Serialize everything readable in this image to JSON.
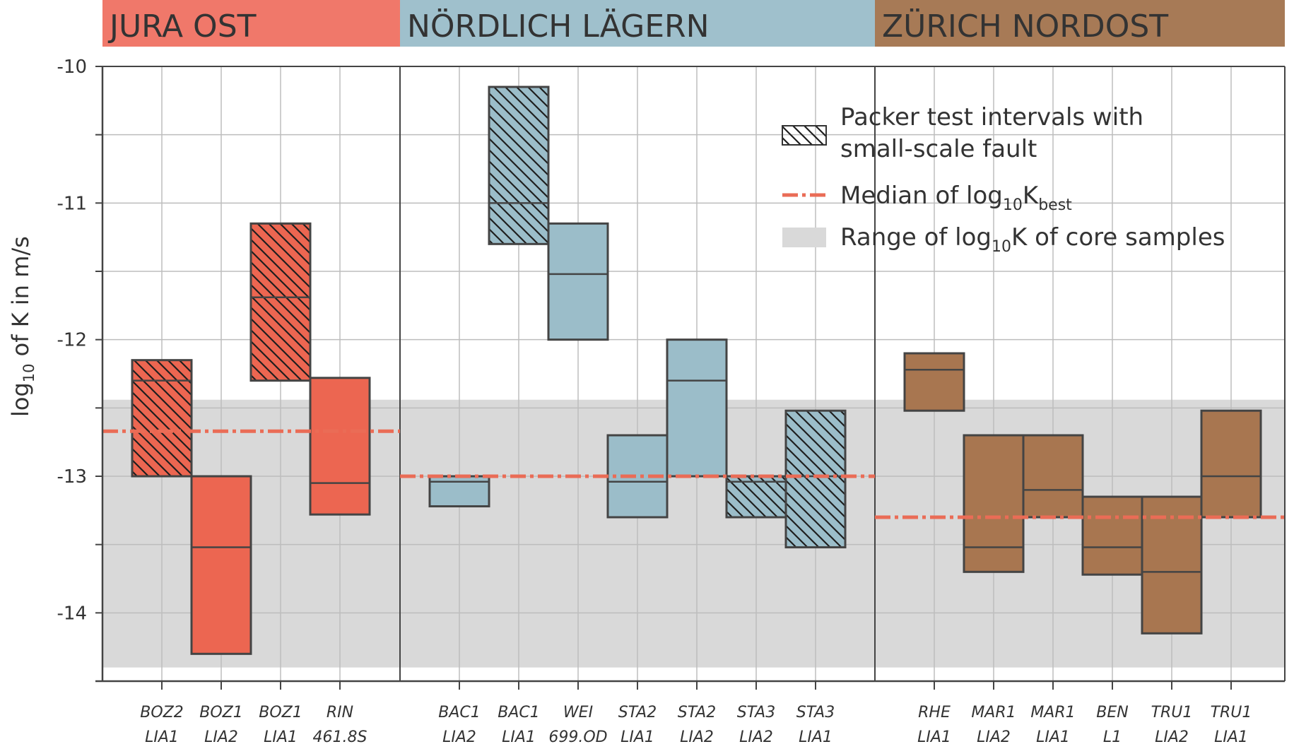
{
  "chart_data": {
    "type": "floating-bar",
    "ylabel": {
      "prefix": "log",
      "sub": "10",
      "suffix": " of K in m/s"
    },
    "ylim": [
      -14.5,
      -10
    ],
    "yticks": [
      -10,
      -11,
      -12,
      -13,
      -14
    ],
    "ytick_labels": [
      "-10",
      "-11",
      "-12",
      "-13",
      "-14"
    ],
    "regions": [
      {
        "name": "JURA OST",
        "color": "#f0786a",
        "box_color": "#ec6651",
        "median": -12.67,
        "bars": [
          {
            "label": [
              "BOZ2",
              "LIA1"
            ],
            "low": -13.0,
            "high": -12.15,
            "median": -12.3,
            "hatched": true
          },
          {
            "label": [
              "BOZ1",
              "LIA2"
            ],
            "low": -14.3,
            "high": -13.0,
            "median": -13.52,
            "hatched": false
          },
          {
            "label": [
              "BOZ1",
              "LIA1"
            ],
            "low": -12.3,
            "high": -11.15,
            "median": -11.69,
            "hatched": true
          },
          {
            "label": [
              "RIN",
              "461.8S"
            ],
            "low": -13.28,
            "high": -12.28,
            "median": -13.05,
            "hatched": false
          }
        ]
      },
      {
        "name": "NÖRDLICH LÄGERN",
        "color": "#9fc0cc",
        "box_color": "#9bbdc9",
        "median": -13.0,
        "bars": [
          {
            "label": [
              "BAC1",
              "LIA2"
            ],
            "low": -13.22,
            "high": -13.0,
            "median": -13.04,
            "hatched": false
          },
          {
            "label": [
              "BAC1",
              "LIA1"
            ],
            "low": -11.3,
            "high": -10.15,
            "median": -11.0,
            "hatched": true
          },
          {
            "label": [
              "WEI",
              "699.OD"
            ],
            "low": -12.0,
            "high": -11.15,
            "median": -11.52,
            "hatched": false
          },
          {
            "label": [
              "STA2",
              "LIA1"
            ],
            "low": -13.3,
            "high": -12.7,
            "median": -13.04,
            "hatched": false
          },
          {
            "label": [
              "STA2",
              "LIA2"
            ],
            "low": -13.0,
            "high": -12.0,
            "median": -12.3,
            "hatched": false
          },
          {
            "label": [
              "STA3",
              "LIA2"
            ],
            "low": -13.3,
            "high": -13.0,
            "median": -13.04,
            "hatched": true
          },
          {
            "label": [
              "STA3",
              "LIA1"
            ],
            "low": -13.52,
            "high": -12.52,
            "median": -13.0,
            "hatched": true
          }
        ]
      },
      {
        "name": "ZÜRICH NORDOST",
        "color": "#a77a56",
        "box_color": "#a87650",
        "median": -13.3,
        "bars": [
          {
            "label": [
              "RHE",
              "LIA1"
            ],
            "low": -12.52,
            "high": -12.1,
            "median": -12.22,
            "hatched": false
          },
          {
            "label": [
              "MAR1",
              "LIA2"
            ],
            "low": -13.7,
            "high": -12.7,
            "median": -13.52,
            "hatched": false
          },
          {
            "label": [
              "MAR1",
              "LIA1"
            ],
            "low": -13.3,
            "high": -12.7,
            "median": -13.1,
            "hatched": false
          },
          {
            "label": [
              "BEN",
              "L1"
            ],
            "low": -13.72,
            "high": -13.15,
            "median": -13.52,
            "hatched": false
          },
          {
            "label": [
              "TRU1",
              "LIA2"
            ],
            "low": -14.15,
            "high": -13.15,
            "median": -13.7,
            "hatched": false
          },
          {
            "label": [
              "TRU1",
              "LIA1"
            ],
            "low": -13.3,
            "high": -12.52,
            "median": -13.0,
            "hatched": false
          }
        ]
      }
    ],
    "core_sample_range": [
      -14.4,
      -12.44
    ],
    "legend": {
      "hatch_line1": "Packer test intervals with",
      "hatch_line2": "small-scale fault",
      "median": {
        "prefix": "Median of log",
        "sub": "10",
        "mid": "K",
        "sub2": "best"
      },
      "range": {
        "prefix": "Range of log",
        "sub": "10",
        "suffix": "K of core samples"
      }
    },
    "colors": {
      "median_line": "#ea6c56",
      "band": "#d9d9d9",
      "grid": "#bdbdbd",
      "axis": "#444444",
      "edge": "#444444"
    }
  }
}
